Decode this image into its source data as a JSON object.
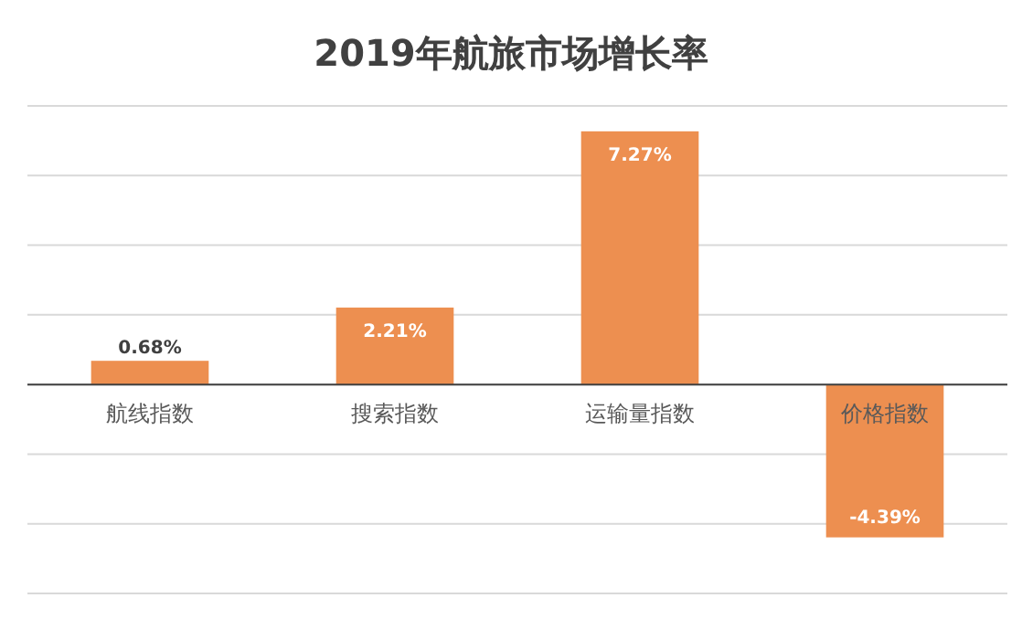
{
  "chart_data": {
    "type": "bar",
    "title": "2019年航旅市场增长率",
    "categories": [
      "航线指数",
      "搜索指数",
      "运输量指数",
      "价格指数"
    ],
    "values": [
      0.68,
      2.21,
      7.27,
      -4.39
    ],
    "value_labels": [
      "0.68%",
      "2.21%",
      "7.27%",
      "-4.39%"
    ],
    "color": "#ed8f50",
    "ylim": [
      -6,
      8
    ],
    "yticks": [
      {
        "value": -6,
        "label": null
      },
      {
        "value": -4,
        "label": null
      },
      {
        "value": -2,
        "label": null
      },
      {
        "value": 0,
        "label": null
      },
      {
        "value": 2,
        "label": null
      },
      {
        "value": 4,
        "label": null
      },
      {
        "value": 6,
        "label": null
      },
      {
        "value": 8,
        "label": null
      }
    ],
    "grid": true,
    "tick_labels": "x"
  }
}
